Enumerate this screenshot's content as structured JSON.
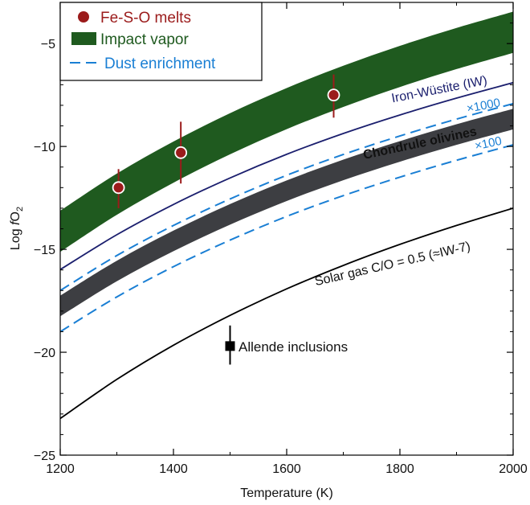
{
  "chart_data": {
    "type": "line",
    "xlabel": "Temperature (K)",
    "ylabel_prefix": "Log ",
    "ylabel_italic": "f",
    "ylabel_main": "O",
    "ylabel_sub": "2",
    "xlim": [
      1200,
      2000
    ],
    "ylim": [
      -25,
      -3
    ],
    "x_ticks": [
      1200,
      1400,
      1600,
      1800,
      2000
    ],
    "y_ticks": [
      -25,
      -20,
      -15,
      -10,
      -5
    ],
    "x_tick_labels": [
      "1200",
      "1400",
      "1600",
      "1800",
      "2000"
    ],
    "y_tick_labels": [
      "−25",
      "−20",
      "−15",
      "−10",
      "−5"
    ],
    "legend": {
      "position": "top-left",
      "items": [
        {
          "label": "Fe-S-O melts",
          "color": "#9b1b1b",
          "marker": "circle"
        },
        {
          "label": "Impact vapor",
          "color": "#1f5a1f",
          "marker": "rect"
        },
        {
          "label": "Dust enrichment",
          "color": "#1a7fd4",
          "marker": "dash"
        }
      ]
    },
    "series": [
      {
        "name": "Iron-Wüstite (IW)",
        "kind": "line",
        "color": "#1b1f6e",
        "x": [
          1200,
          1300,
          1400,
          1500,
          1600,
          1700,
          1800,
          1900,
          2000
        ],
        "y": [
          -15.98,
          -14.29,
          -12.82,
          -11.53,
          -10.38,
          -9.37,
          -8.47,
          -7.65,
          -6.9
        ]
      },
      {
        "name": "×1000",
        "kind": "dashed",
        "color": "#1a7fd4",
        "x": [
          1200,
          1300,
          1400,
          1500,
          1600,
          1700,
          1800,
          1900,
          2000
        ],
        "y": [
          -17.0,
          -15.3,
          -13.84,
          -12.55,
          -11.4,
          -10.39,
          -9.49,
          -8.67,
          -7.92
        ]
      },
      {
        "name": "×100",
        "kind": "dashed",
        "color": "#1a7fd4",
        "x": [
          1200,
          1300,
          1400,
          1500,
          1600,
          1700,
          1800,
          1900,
          2000
        ],
        "y": [
          -19.0,
          -17.31,
          -15.84,
          -14.55,
          -13.4,
          -12.39,
          -11.49,
          -10.67,
          -9.92
        ]
      },
      {
        "name": "Solar gas C/O = 0.5 (≈IW-7)",
        "kind": "line",
        "color": "#000000",
        "x": [
          1200,
          1300,
          1400,
          1500,
          1600,
          1700,
          1800,
          1900,
          2000
        ],
        "y": [
          -23.22,
          -21.32,
          -19.66,
          -18.21,
          -16.92,
          -15.78,
          -14.76,
          -13.84,
          -13.0
        ]
      }
    ],
    "bands": [
      {
        "name": "Impact vapor",
        "color": "#1f5a1f",
        "x": [
          1200,
          1300,
          1400,
          1500,
          1600,
          1700,
          1800,
          1900,
          2000
        ],
        "upper": [
          -13.12,
          -11.32,
          -9.76,
          -8.38,
          -7.16,
          -6.08,
          -5.11,
          -4.24,
          -3.45
        ],
        "lower": [
          -15.12,
          -13.32,
          -11.76,
          -10.38,
          -9.16,
          -8.08,
          -7.11,
          -6.24,
          -5.45
        ]
      },
      {
        "name": "Chondrule olivines",
        "color": "#3d3e42",
        "x": [
          1200,
          1300,
          1400,
          1500,
          1600,
          1700,
          1800,
          1900,
          2000
        ],
        "upper": [
          -17.25,
          -15.55,
          -14.09,
          -12.8,
          -11.65,
          -10.64,
          -9.74,
          -8.92,
          -8.17
        ],
        "lower": [
          -18.25,
          -16.55,
          -15.09,
          -13.8,
          -12.65,
          -11.64,
          -10.74,
          -9.92,
          -9.17
        ]
      }
    ],
    "fe_s_o_melts": [
      {
        "x": 1303,
        "y": -12.0,
        "err_low": -13.0,
        "err_high": -11.1
      },
      {
        "x": 1413,
        "y": -10.3,
        "err_low": -11.8,
        "err_high": -8.8
      },
      {
        "x": 1683,
        "y": -7.5,
        "err_low": -8.6,
        "err_high": -6.5
      }
    ],
    "allende": {
      "x": 1500,
      "y": -19.7,
      "err_low": -20.6,
      "err_high": -18.7,
      "label": "Allende inclusions"
    },
    "annotations": {
      "iw": "Iron-Wüstite (IW)",
      "x1000": "×1000",
      "chondrule": "Chondrule olivines",
      "x100": "×100",
      "solar": "Solar gas C/O = 0.5 (≈IW-7)"
    }
  }
}
